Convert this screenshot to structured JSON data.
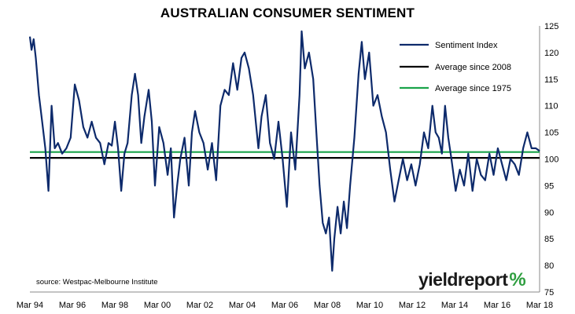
{
  "chart_data": {
    "type": "line",
    "title": "AUSTRALIAN CONSUMER SENTIMENT",
    "source": "source: Westpac-Melbourne Institute",
    "y_ticks": [
      75,
      80,
      85,
      90,
      95,
      100,
      105,
      110,
      115,
      120,
      125
    ],
    "ylim": [
      75,
      125
    ],
    "x_tick_labels": [
      "Mar 94",
      "Mar 96",
      "Mar 98",
      "Mar 00",
      "Mar 02",
      "Mar 04",
      "Mar 06",
      "Mar 08",
      "Mar 10",
      "Mar 12",
      "Mar 14",
      "Mar 16",
      "Mar 18"
    ],
    "xlim": [
      1994.17,
      2018.33
    ],
    "grid": false,
    "legend_position": "top-right",
    "series": [
      {
        "name": "Sentiment Index",
        "color": "#0d2a6b",
        "points": [
          [
            1994.17,
            123
          ],
          [
            1994.25,
            120.5
          ],
          [
            1994.35,
            122.5
          ],
          [
            1994.45,
            119
          ],
          [
            1994.6,
            112
          ],
          [
            1994.75,
            107
          ],
          [
            1994.9,
            102
          ],
          [
            1995.05,
            94
          ],
          [
            1995.2,
            110
          ],
          [
            1995.35,
            102
          ],
          [
            1995.5,
            103
          ],
          [
            1995.7,
            101
          ],
          [
            1995.9,
            102
          ],
          [
            1996.1,
            104
          ],
          [
            1996.3,
            114
          ],
          [
            1996.5,
            111
          ],
          [
            1996.7,
            106
          ],
          [
            1996.9,
            104
          ],
          [
            1997.1,
            107
          ],
          [
            1997.3,
            104
          ],
          [
            1997.5,
            103
          ],
          [
            1997.7,
            99
          ],
          [
            1997.9,
            103
          ],
          [
            1998.05,
            102.5
          ],
          [
            1998.2,
            107
          ],
          [
            1998.35,
            102
          ],
          [
            1998.5,
            94
          ],
          [
            1998.65,
            101
          ],
          [
            1998.8,
            103
          ],
          [
            1999.0,
            112
          ],
          [
            1999.15,
            116
          ],
          [
            1999.3,
            112
          ],
          [
            1999.45,
            103
          ],
          [
            1999.6,
            108
          ],
          [
            1999.8,
            113
          ],
          [
            1999.95,
            107
          ],
          [
            2000.1,
            95
          ],
          [
            2000.3,
            106
          ],
          [
            2000.5,
            103
          ],
          [
            2000.7,
            97
          ],
          [
            2000.85,
            102
          ],
          [
            2001.0,
            89
          ],
          [
            2001.15,
            95
          ],
          [
            2001.3,
            100
          ],
          [
            2001.5,
            104
          ],
          [
            2001.7,
            95
          ],
          [
            2001.85,
            105
          ],
          [
            2002.0,
            109
          ],
          [
            2002.2,
            105
          ],
          [
            2002.4,
            103
          ],
          [
            2002.6,
            98
          ],
          [
            2002.8,
            103
          ],
          [
            2003.0,
            96
          ],
          [
            2003.2,
            110
          ],
          [
            2003.4,
            113
          ],
          [
            2003.6,
            112
          ],
          [
            2003.8,
            118
          ],
          [
            2004.0,
            113
          ],
          [
            2004.2,
            119
          ],
          [
            2004.35,
            120
          ],
          [
            2004.55,
            117
          ],
          [
            2004.75,
            112
          ],
          [
            2005.0,
            102
          ],
          [
            2005.15,
            108
          ],
          [
            2005.35,
            112
          ],
          [
            2005.55,
            103
          ],
          [
            2005.75,
            100
          ],
          [
            2005.95,
            107
          ],
          [
            2006.15,
            100
          ],
          [
            2006.35,
            91
          ],
          [
            2006.55,
            105
          ],
          [
            2006.75,
            98
          ],
          [
            2006.95,
            112
          ],
          [
            2007.05,
            124
          ],
          [
            2007.2,
            117
          ],
          [
            2007.4,
            120
          ],
          [
            2007.6,
            115
          ],
          [
            2007.75,
            105
          ],
          [
            2007.9,
            95
          ],
          [
            2008.05,
            88
          ],
          [
            2008.2,
            86
          ],
          [
            2008.35,
            89
          ],
          [
            2008.5,
            79
          ],
          [
            2008.6,
            85
          ],
          [
            2008.75,
            91
          ],
          [
            2008.9,
            86
          ],
          [
            2009.05,
            92
          ],
          [
            2009.2,
            87
          ],
          [
            2009.35,
            95
          ],
          [
            2009.55,
            104
          ],
          [
            2009.75,
            116
          ],
          [
            2009.9,
            122
          ],
          [
            2010.05,
            115
          ],
          [
            2010.25,
            120
          ],
          [
            2010.45,
            110
          ],
          [
            2010.65,
            112
          ],
          [
            2010.85,
            108
          ],
          [
            2011.05,
            105
          ],
          [
            2011.25,
            98
          ],
          [
            2011.45,
            92
          ],
          [
            2011.65,
            96
          ],
          [
            2011.85,
            100
          ],
          [
            2012.05,
            96
          ],
          [
            2012.25,
            99
          ],
          [
            2012.45,
            95
          ],
          [
            2012.65,
            99
          ],
          [
            2012.85,
            105
          ],
          [
            2013.05,
            102
          ],
          [
            2013.25,
            110
          ],
          [
            2013.4,
            105
          ],
          [
            2013.55,
            104
          ],
          [
            2013.7,
            101
          ],
          [
            2013.85,
            110
          ],
          [
            2014.0,
            104
          ],
          [
            2014.15,
            100
          ],
          [
            2014.35,
            94
          ],
          [
            2014.55,
            98
          ],
          [
            2014.75,
            95
          ],
          [
            2014.95,
            101
          ],
          [
            2015.15,
            94
          ],
          [
            2015.35,
            100
          ],
          [
            2015.55,
            97
          ],
          [
            2015.75,
            96
          ],
          [
            2015.95,
            101
          ],
          [
            2016.15,
            97
          ],
          [
            2016.35,
            102
          ],
          [
            2016.55,
            99
          ],
          [
            2016.75,
            96
          ],
          [
            2016.95,
            100
          ],
          [
            2017.15,
            99
          ],
          [
            2017.35,
            97
          ],
          [
            2017.55,
            102
          ],
          [
            2017.75,
            105
          ],
          [
            2017.95,
            102
          ],
          [
            2018.15,
            102
          ],
          [
            2018.33,
            101.5
          ]
        ]
      },
      {
        "name": "Average since 2008",
        "color": "#000000",
        "value": 100.2
      },
      {
        "name": "Average since 1975",
        "color": "#1aa34a",
        "value": 101.3
      }
    ]
  },
  "logo": {
    "text": "yieldreport",
    "suffix": "%"
  }
}
